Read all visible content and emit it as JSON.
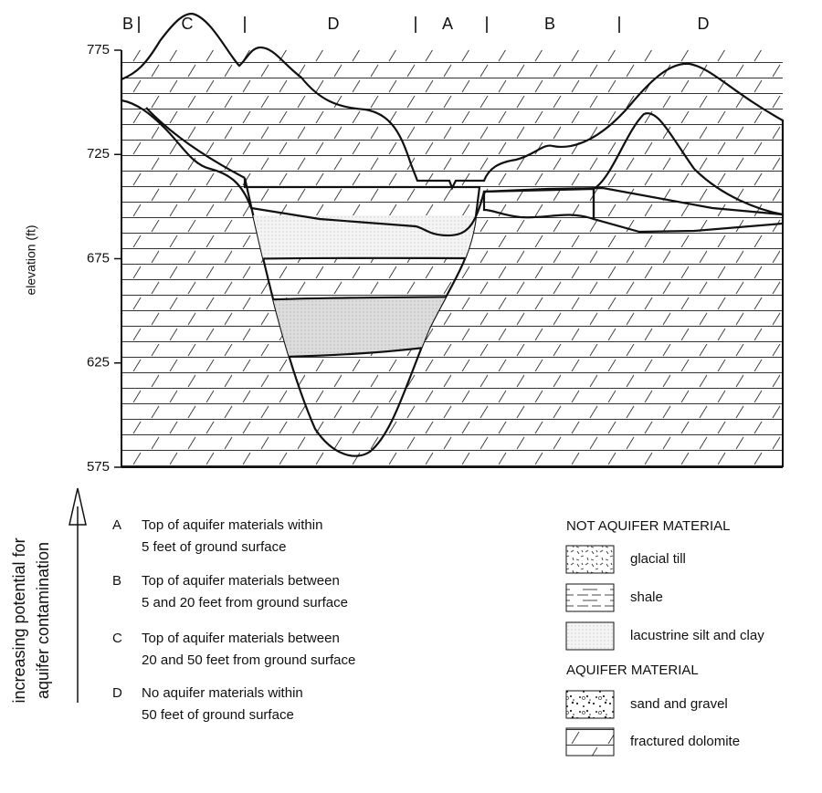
{
  "zone_labels": [
    "B",
    "C",
    "D",
    "A",
    "B",
    "D"
  ],
  "axis": {
    "label": "elevation (ft)",
    "ticks": [
      775,
      725,
      675,
      625,
      575
    ]
  },
  "legend": {
    "arrow_label": [
      "increasing potential for",
      "aquifer contamination"
    ],
    "items": [
      {
        "letter": "A",
        "lines": [
          "Top of aquifer materials within",
          "5 feet of ground surface"
        ]
      },
      {
        "letter": "B",
        "lines": [
          "Top of aquifer materials between",
          "5 and 20 feet from ground surface"
        ]
      },
      {
        "letter": "C",
        "lines": [
          "Top of aquifer materials between",
          "20 and 50 feet from ground surface"
        ]
      },
      {
        "letter": "D",
        "lines": [
          "No aquifer materials within",
          "50 feet of ground surface"
        ]
      }
    ]
  },
  "materials": {
    "not_aquifer": {
      "title": "NOT AQUIFER MATERIAL",
      "items": [
        "glacial till",
        "shale",
        "lacustrine silt and clay"
      ]
    },
    "aquifer": {
      "title": "AQUIFER MATERIAL",
      "items": [
        "sand and gravel",
        "fractured dolomite"
      ]
    }
  }
}
